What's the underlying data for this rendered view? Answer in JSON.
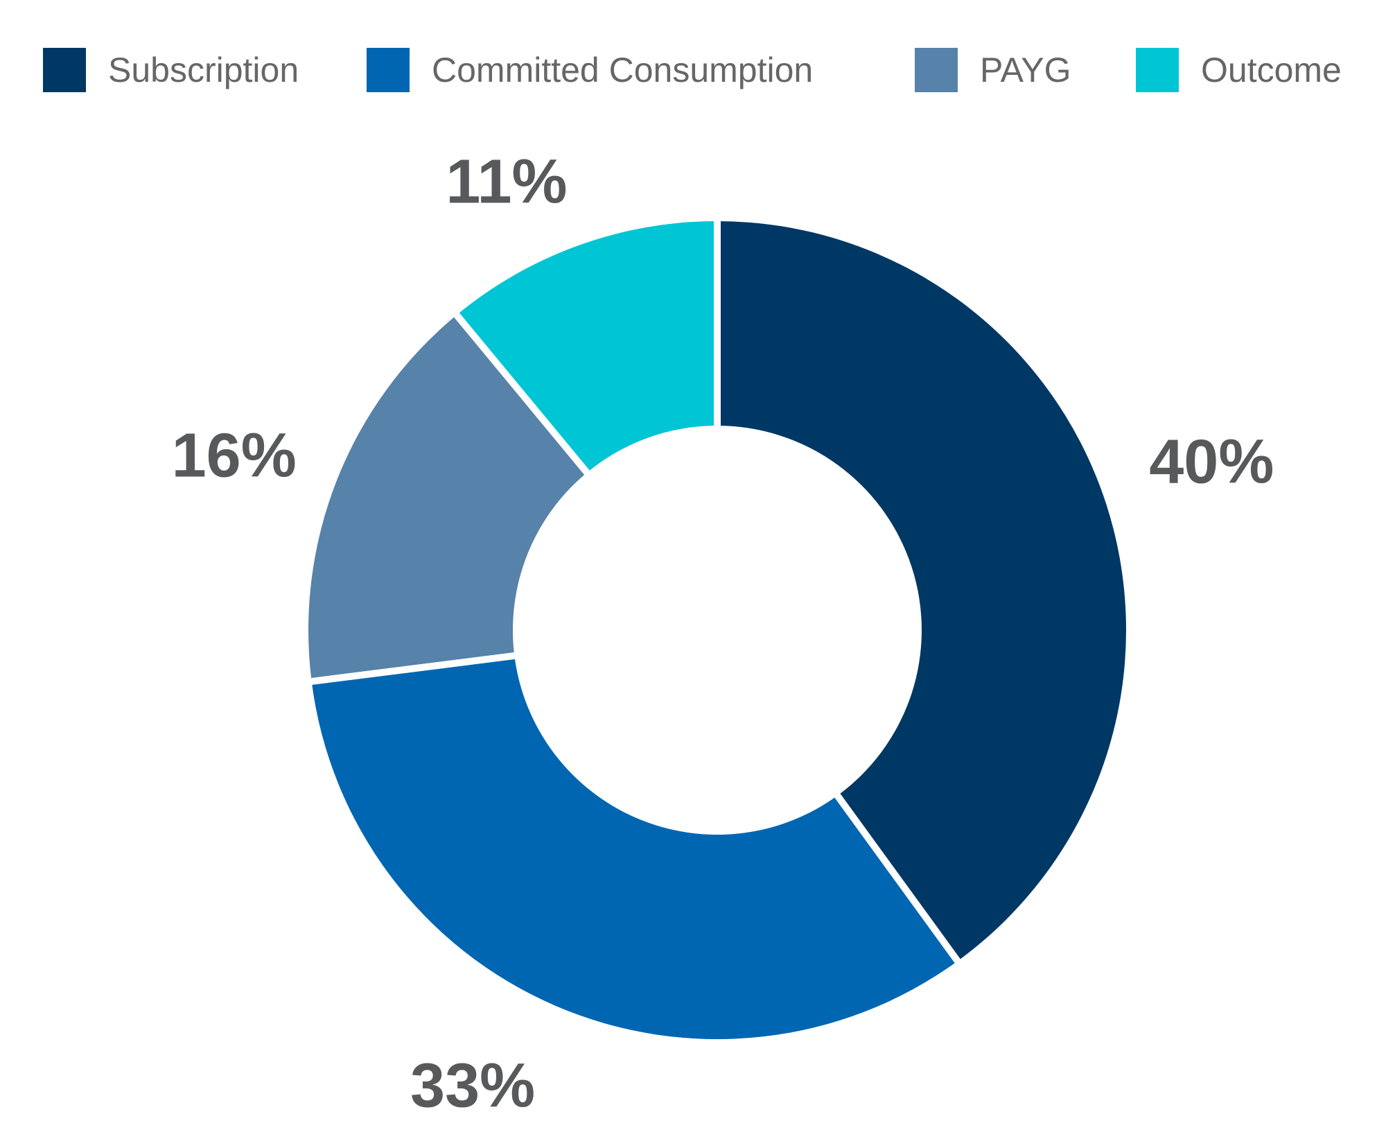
{
  "chart_data": {
    "type": "pie",
    "variant": "donut",
    "title": "",
    "categories": [
      "Subscription",
      "Committed Consumption",
      "PAYG",
      "Outcome"
    ],
    "values": [
      40,
      33,
      16,
      11
    ],
    "data_labels": [
      "40%",
      "33%",
      "16%",
      "11%"
    ],
    "colors": [
      "#003865",
      "#0066B2",
      "#5782A9",
      "#00C5D4"
    ],
    "start_angle_deg": 0,
    "direction": "clockwise",
    "inner_radius_ratio": 0.5,
    "slice_separator_color": "#ffffff",
    "data_label_color": "#58595B",
    "legend_position": "top",
    "legend_text_color": "#666666"
  },
  "legend": {
    "items": [
      {
        "label": "Subscription",
        "color": "#003865"
      },
      {
        "label": "Committed Consumption",
        "color": "#0066B2"
      },
      {
        "label": "PAYG",
        "color": "#5782A9"
      },
      {
        "label": "Outcome",
        "color": "#00C5D4"
      }
    ]
  }
}
